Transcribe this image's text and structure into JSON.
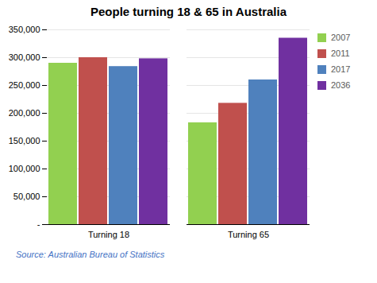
{
  "chart_data": {
    "type": "bar",
    "title": "People turning 18 & 65 in Australia",
    "annotations": [
      "Source: Australian Bureau of Statistics"
    ],
    "categories": [
      "Turning 18",
      "Turning 65"
    ],
    "series": [
      {
        "name": "2007",
        "color": "#92d050",
        "values": [
          290000,
          183000
        ]
      },
      {
        "name": "2011",
        "color": "#c0504d",
        "values": [
          300000,
          218000
        ]
      },
      {
        "name": "2017",
        "color": "#4f81bd",
        "values": [
          284000,
          260000
        ]
      },
      {
        "name": "2036",
        "color": "#7030a0",
        "values": [
          298000,
          335000
        ]
      }
    ],
    "ylim": [
      0,
      350000
    ],
    "yticks": [
      {
        "value": 0,
        "label": "-"
      },
      {
        "value": 50000,
        "label": "50,000"
      },
      {
        "value": 100000,
        "label": "100,000"
      },
      {
        "value": 150000,
        "label": "150,000"
      },
      {
        "value": 200000,
        "label": "200,000"
      },
      {
        "value": 250000,
        "label": "250,000"
      },
      {
        "value": 300000,
        "label": "300,000"
      },
      {
        "value": 350000,
        "label": "350,000"
      }
    ],
    "grid": true,
    "legend": "right"
  }
}
